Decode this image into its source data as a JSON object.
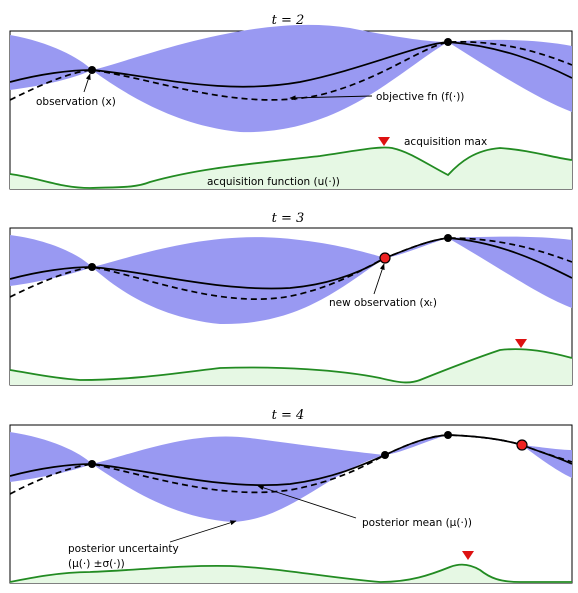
{
  "colors": {
    "uncertainty": "#9999f2",
    "acquisition_line": "#228b22",
    "acquisition_fill": "#e6f8e4",
    "marker_max": "#dd1111",
    "new_observation": "#ee2222"
  },
  "panels": [
    {
      "title": "t = 2",
      "labels": {
        "observation": "observation (x)",
        "objective": "objective fn (f(·))",
        "acq_max": "acquisition max",
        "acq_fn": "acquisition function (u(·))"
      }
    },
    {
      "title": "t = 3",
      "labels": {
        "new_obs": "new observation (xₜ)"
      }
    },
    {
      "title": "t = 4",
      "labels": {
        "post_mean": "posterior mean (μ(·))",
        "post_unc_1": "posterior uncertainty",
        "post_unc_2": "(μ(·) ±σ(·))"
      }
    }
  ]
}
